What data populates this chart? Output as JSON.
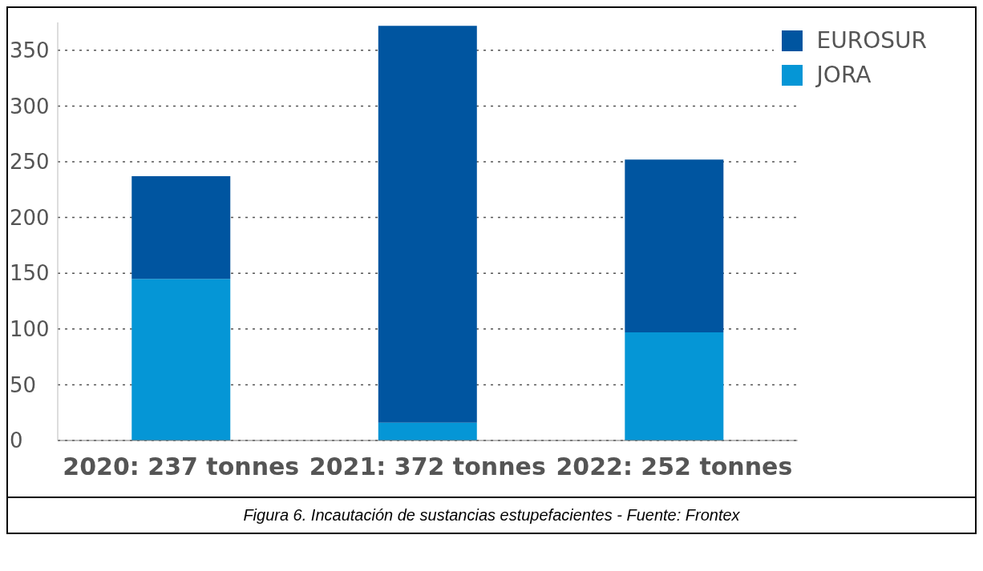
{
  "chart_data": {
    "type": "bar",
    "stacked": true,
    "categories": [
      "2020: 237 tonnes",
      "2021: 372 tonnes",
      "2022: 252 tonnes"
    ],
    "series": [
      {
        "name": "JORA",
        "color": "#0596d6",
        "values": [
          145,
          16,
          97
        ]
      },
      {
        "name": "EUROSUR",
        "color": "#0055a0",
        "values": [
          92,
          356,
          155
        ]
      }
    ],
    "ylim": [
      0,
      375
    ],
    "yticks": [
      0,
      50,
      100,
      150,
      200,
      250,
      300,
      350
    ],
    "grid": "y",
    "legend": "top right",
    "annotations": [
      "Figura 6. Incautación de sustancias estupefacientes - Fuente: Frontex"
    ]
  }
}
